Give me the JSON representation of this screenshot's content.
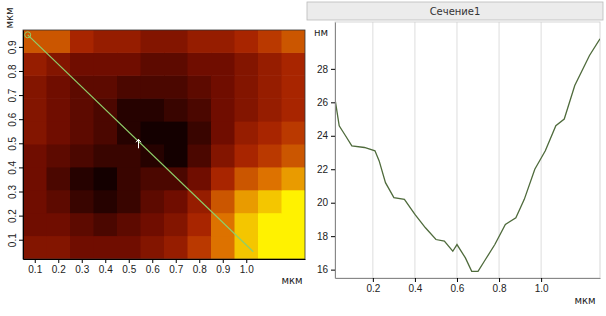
{
  "chart_data": [
    {
      "type": "heatmap",
      "xlabel": "мкм",
      "ylabel": "мкм",
      "x": [
        0.1,
        0.2,
        0.3,
        0.4,
        0.5,
        0.6,
        0.7,
        0.8,
        0.9,
        1.0,
        1.1,
        1.2
      ],
      "y": [
        0.07,
        0.165,
        0.26,
        0.355,
        0.45,
        0.545,
        0.64,
        0.735,
        0.83,
        0.925
      ],
      "z": [
        [
          22,
          22,
          21,
          21,
          21,
          22,
          23,
          25,
          27,
          29,
          30,
          30
        ],
        [
          21,
          21,
          20,
          19,
          20,
          21,
          22,
          24,
          27,
          29,
          30,
          30
        ],
        [
          21,
          20,
          18,
          17,
          18,
          20,
          21,
          23,
          26,
          28,
          29,
          30
        ],
        [
          21,
          19,
          17,
          16,
          18,
          19,
          19,
          21,
          24,
          26,
          27,
          28
        ],
        [
          21,
          20,
          19,
          18,
          18,
          17,
          16,
          19,
          22,
          24,
          25,
          26
        ],
        [
          22,
          21,
          20,
          19,
          17,
          16,
          16,
          18,
          21,
          23,
          24,
          25
        ],
        [
          22,
          21,
          20,
          19,
          17,
          17,
          18,
          19,
          21,
          22,
          23,
          24
        ],
        [
          22,
          21,
          20,
          20,
          19,
          19,
          19,
          20,
          21,
          22,
          23,
          24
        ],
        [
          23,
          22,
          21,
          21,
          21,
          20,
          20,
          21,
          21,
          22,
          23,
          24
        ],
        [
          26,
          26,
          24,
          23,
          23,
          22,
          22,
          23,
          23,
          24,
          25,
          26
        ]
      ],
      "section": {
        "x": [
          0.07,
          1.03
        ],
        "y": [
          0.95,
          0.05
        ]
      },
      "xlim": [
        0.05,
        1.25
      ],
      "ylim": [
        0.02,
        0.97
      ],
      "xticks": [
        0.1,
        0.2,
        0.3,
        0.4,
        0.5,
        0.6,
        0.7,
        0.8,
        0.9,
        {
          "value": 1,
          "label": "1.0"
        }
      ],
      "yticks": [
        0.1,
        0.2,
        0.3,
        0.4,
        0.5,
        0.6,
        0.7,
        0.8,
        0.9
      ]
    },
    {
      "type": "line",
      "title": "Сечение1",
      "xlabel": "мкм",
      "ylabel": "нм",
      "x": [
        0.02,
        0.04,
        0.07,
        0.1,
        0.16,
        0.21,
        0.23,
        0.26,
        0.3,
        0.35,
        0.4,
        0.45,
        0.5,
        0.54,
        0.58,
        0.6,
        0.64,
        0.67,
        0.7,
        0.73,
        0.78,
        0.83,
        0.88,
        0.92,
        0.97,
        1.02,
        1.07,
        1.11,
        1.16,
        1.23,
        1.28
      ],
      "series": [
        {
          "color": "#4f6b3c",
          "values": [
            26.2,
            24.6,
            24.0,
            23.4,
            23.3,
            23.1,
            22.5,
            21.2,
            20.3,
            20.2,
            19.3,
            18.5,
            17.8,
            17.7,
            17.1,
            17.5,
            16.7,
            15.9,
            15.9,
            16.5,
            17.5,
            18.7,
            19.1,
            20.2,
            22.0,
            23.1,
            24.6,
            25.0,
            27.0,
            28.8,
            29.8
          ]
        }
      ],
      "xlim": [
        0.02,
        1.28
      ],
      "ylim": [
        15.5,
        30.8
      ],
      "xticks": [
        0.2,
        0.4,
        0.6,
        0.8,
        {
          "value": 1,
          "label": "1.0"
        }
      ],
      "yticks": [
        16,
        18,
        20,
        22,
        24,
        26,
        28
      ],
      "grid": "x"
    }
  ]
}
